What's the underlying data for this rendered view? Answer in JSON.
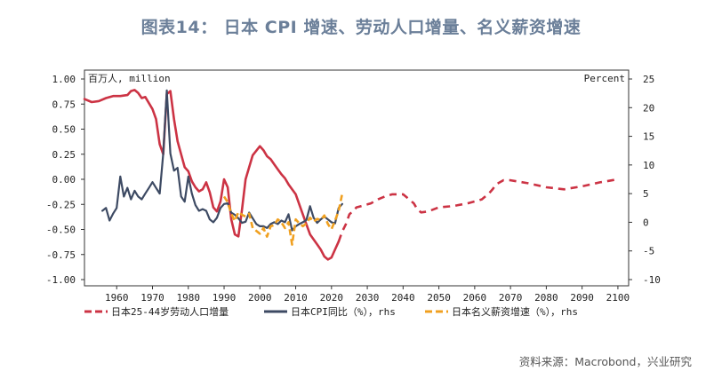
{
  "title": "图表14： 日本 CPI 增速、劳动人口增量、名义薪资增速",
  "source": "资料来源：Macrobond，兴业研究",
  "chart_data": {
    "type": "line",
    "left_axis_unit": "百万人, million",
    "right_axis_unit": "Percent",
    "left_ylim": [
      -1.0,
      1.0
    ],
    "left_ticks": [
      "1.00",
      "0.75",
      "0.50",
      "0.25",
      "0.00",
      "-0.25",
      "-0.50",
      "-0.75",
      "-1.00"
    ],
    "right_ylim": [
      -10,
      25
    ],
    "right_ticks": [
      "25",
      "20",
      "15",
      "10",
      "5",
      "0",
      "-5",
      "-10"
    ],
    "xlim": [
      1951,
      2103
    ],
    "x_ticks": [
      "1960",
      "1970",
      "1980",
      "1990",
      "2000",
      "2010",
      "2020",
      "2030",
      "2040",
      "2050",
      "2060",
      "2070",
      "2080",
      "2090",
      "2100"
    ],
    "colors": {
      "labor": "#cc3344",
      "cpi": "#3d4a63",
      "wage": "#f0a020"
    },
    "series": [
      {
        "name": "日本25-44岁劳动人口增量",
        "axis": "left",
        "style": "solid",
        "x": [
          1951,
          1953,
          1955,
          1957,
          1959,
          1961,
          1963,
          1964,
          1965,
          1966,
          1967,
          1968,
          1970,
          1971,
          1972,
          1973,
          1974,
          1975,
          1976,
          1977,
          1978,
          1979,
          1980,
          1981,
          1982,
          1983,
          1984,
          1985,
          1986,
          1987,
          1988,
          1989,
          1990,
          1991,
          1992,
          1993,
          1994,
          1995,
          1996,
          1998,
          2000,
          2001,
          2002,
          2003,
          2004,
          2005,
          2006,
          2007,
          2008,
          2009,
          2010,
          2011,
          2012,
          2013,
          2014,
          2015,
          2016,
          2017,
          2018,
          2019,
          2020,
          2021,
          2022
        ],
        "values": [
          0.8,
          0.77,
          0.78,
          0.81,
          0.83,
          0.83,
          0.84,
          0.88,
          0.89,
          0.86,
          0.81,
          0.82,
          0.7,
          0.6,
          0.35,
          0.25,
          0.85,
          0.88,
          0.6,
          0.38,
          0.25,
          0.12,
          0.08,
          -0.02,
          -0.08,
          -0.12,
          -0.1,
          -0.03,
          -0.13,
          -0.28,
          -0.32,
          -0.22,
          0.0,
          -0.08,
          -0.4,
          -0.55,
          -0.57,
          -0.3,
          0.0,
          0.24,
          0.33,
          0.29,
          0.23,
          0.2,
          0.15,
          0.1,
          0.05,
          0.01,
          -0.05,
          -0.1,
          -0.15,
          -0.25,
          -0.35,
          -0.45,
          -0.55,
          -0.6,
          -0.65,
          -0.7,
          -0.77,
          -0.8,
          -0.78,
          -0.7,
          -0.62
        ]
      },
      {
        "name": "日本25-44岁劳动人口增量",
        "axis": "left",
        "style": "dashed",
        "x": [
          2022,
          2023,
          2024,
          2025,
          2027,
          2030,
          2031,
          2033,
          2035,
          2037,
          2040,
          2041,
          2042,
          2043,
          2044,
          2045,
          2047,
          2050,
          2053,
          2055,
          2058,
          2060,
          2062,
          2064,
          2065,
          2066,
          2068,
          2070,
          2075,
          2080,
          2085,
          2090,
          2095,
          2100
        ],
        "values": [
          -0.62,
          -0.52,
          -0.45,
          -0.35,
          -0.28,
          -0.25,
          -0.24,
          -0.2,
          -0.17,
          -0.15,
          -0.15,
          -0.18,
          -0.21,
          -0.24,
          -0.3,
          -0.33,
          -0.32,
          -0.28,
          -0.27,
          -0.26,
          -0.24,
          -0.22,
          -0.2,
          -0.14,
          -0.1,
          -0.05,
          -0.01,
          -0.01,
          -0.04,
          -0.08,
          -0.1,
          -0.07,
          -0.03,
          0.0
        ]
      },
      {
        "name": "日本CPI同比（%），rhs",
        "axis": "right",
        "style": "solid",
        "x": [
          1956,
          1957,
          1958,
          1959,
          1960,
          1961,
          1962,
          1963,
          1964,
          1965,
          1966,
          1967,
          1968,
          1969,
          1970,
          1971,
          1972,
          1973,
          1974,
          1975,
          1976,
          1977,
          1978,
          1979,
          1980,
          1981,
          1982,
          1983,
          1984,
          1985,
          1986,
          1987,
          1988,
          1989,
          1990,
          1991,
          1992,
          1993,
          1994,
          1995,
          1996,
          1997,
          1998,
          1999,
          2000,
          2001,
          2002,
          2003,
          2004,
          2005,
          2006,
          2007,
          2008,
          2009,
          2010,
          2011,
          2012,
          2013,
          2014,
          2015,
          2016,
          2017,
          2018,
          2019,
          2020,
          2021,
          2022,
          2023
        ],
        "values": [
          2.0,
          2.5,
          0.3,
          1.5,
          2.5,
          8.0,
          4.5,
          6.0,
          4.0,
          5.5,
          4.5,
          4.0,
          5.0,
          6.0,
          7.0,
          6.0,
          5.0,
          12.0,
          23.0,
          12.0,
          9.0,
          9.5,
          4.5,
          3.6,
          8.0,
          5.0,
          3.0,
          2.0,
          2.3,
          2.0,
          0.5,
          0.0,
          0.8,
          2.5,
          3.2,
          3.3,
          1.7,
          1.3,
          0.7,
          -0.1,
          0.1,
          1.7,
          0.7,
          -0.3,
          -0.7,
          -0.7,
          -1.0,
          -0.3,
          0.0,
          -0.3,
          0.3,
          0.0,
          1.4,
          -1.4,
          -0.7,
          -0.3,
          0.0,
          0.4,
          2.8,
          0.8,
          -0.1,
          0.5,
          1.0,
          0.5,
          0.0,
          -0.2,
          2.5,
          3.2
        ]
      },
      {
        "name": "日本名义薪资增速（%），rhs",
        "axis": "right",
        "style": "dashed",
        "x": [
          1990,
          1991,
          1992,
          1993,
          1994,
          1995,
          1996,
          1997,
          1998,
          1999,
          2000,
          2001,
          2002,
          2003,
          2004,
          2005,
          2006,
          2007,
          2008,
          2009,
          2010,
          2011,
          2012,
          2013,
          2014,
          2015,
          2016,
          2017,
          2018,
          2019,
          2020,
          2021,
          2022,
          2023
        ],
        "values": [
          4.5,
          3.5,
          1.5,
          0.2,
          1.8,
          1.3,
          1.0,
          1.5,
          -1.0,
          -1.5,
          -2.0,
          -1.0,
          -2.5,
          -0.7,
          -0.5,
          0.5,
          0.0,
          -1.0,
          0.0,
          -3.9,
          0.5,
          -0.2,
          -0.7,
          -0.2,
          0.8,
          0.1,
          0.6,
          0.4,
          1.2,
          -0.3,
          -1.2,
          0.3,
          2.0,
          5.0
        ]
      }
    ],
    "legend": [
      {
        "label": "日本25-44岁劳动人口增量",
        "color": "#cc3344",
        "style": "dashed"
      },
      {
        "label": "日本CPI同比（%），rhs",
        "color": "#3d4a63",
        "style": "solid"
      },
      {
        "label": "日本名义薪资增速（%），rhs",
        "color": "#f0a020",
        "style": "dashed"
      }
    ]
  }
}
